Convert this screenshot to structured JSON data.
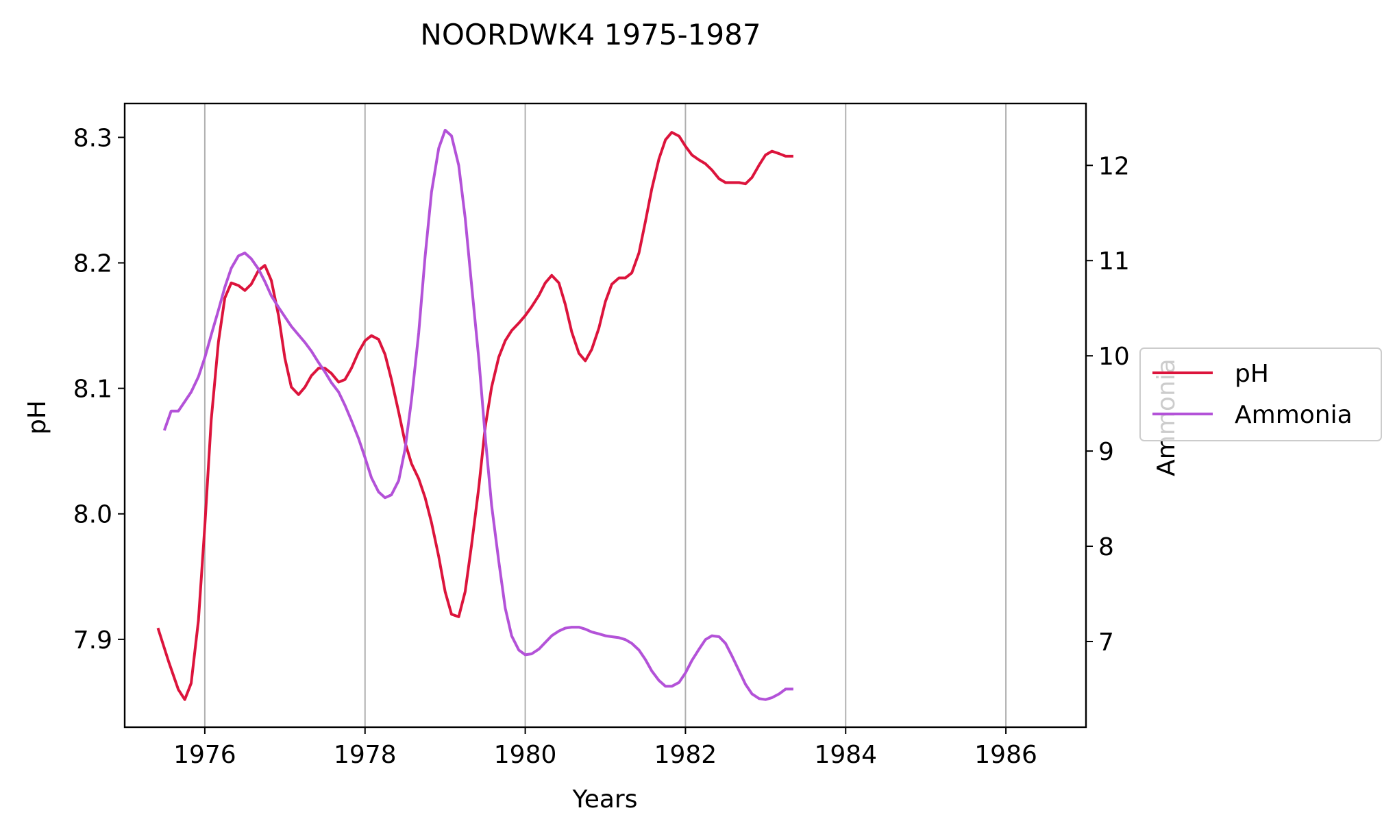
{
  "chart_data": {
    "type": "line",
    "title": "NOORDWK4 1975-1987",
    "xlabel": "Years",
    "ylabel_left": "pH",
    "ylabel_right": "Ammonia",
    "xlim": [
      1975.0,
      1987.0
    ],
    "ylim_left": [
      7.83,
      8.327
    ],
    "ylim_right": [
      6.1,
      12.65
    ],
    "x_ticks": [
      1976,
      1978,
      1980,
      1982,
      1984,
      1986
    ],
    "y_ticks_left": [
      7.9,
      8.0,
      8.1,
      8.2,
      8.3
    ],
    "y_ticks_right": [
      7,
      8,
      9,
      10,
      11,
      12
    ],
    "grid": "vertical lines at x ticks",
    "legend": {
      "placement": "right, outside plot",
      "entries": [
        "pH",
        "Ammonia"
      ]
    },
    "series": [
      {
        "name": "pH",
        "axis": "left",
        "color": "#dc143c",
        "x": [
          1975.42,
          1975.55,
          1975.67,
          1975.75,
          1975.83,
          1975.92,
          1976.0,
          1976.08,
          1976.17,
          1976.25,
          1976.33,
          1976.42,
          1976.5,
          1976.58,
          1976.67,
          1976.75,
          1976.83,
          1976.92,
          1977.0,
          1977.08,
          1977.17,
          1977.25,
          1977.33,
          1977.42,
          1977.5,
          1977.58,
          1977.67,
          1977.75,
          1977.83,
          1977.92,
          1978.0,
          1978.08,
          1978.17,
          1978.25,
          1978.33,
          1978.42,
          1978.5,
          1978.58,
          1978.67,
          1978.75,
          1978.83,
          1978.92,
          1979.0,
          1979.08,
          1979.17,
          1979.25,
          1979.33,
          1979.42,
          1979.5,
          1979.58,
          1979.67,
          1979.75,
          1979.83,
          1979.92,
          1980.0,
          1980.08,
          1980.17,
          1980.25,
          1980.33,
          1980.42,
          1980.5,
          1980.58,
          1980.67,
          1980.75,
          1980.83,
          1980.92,
          1981.0,
          1981.08,
          1981.17,
          1981.25,
          1981.33,
          1981.42,
          1981.5,
          1981.58,
          1981.67,
          1981.75,
          1981.83,
          1981.92,
          1982.0,
          1982.08,
          1982.17,
          1982.25,
          1982.33,
          1982.42,
          1982.5,
          1982.58,
          1982.67,
          1982.75,
          1982.83,
          1982.92,
          1983.0,
          1983.08,
          1983.17,
          1983.25,
          1983.33
        ],
        "values": [
          7.908,
          7.882,
          7.86,
          7.852,
          7.865,
          7.915,
          7.99,
          8.075,
          8.137,
          8.172,
          8.184,
          8.182,
          8.178,
          8.183,
          8.194,
          8.198,
          8.186,
          8.158,
          8.124,
          8.101,
          8.095,
          8.101,
          8.11,
          8.116,
          8.116,
          8.112,
          8.105,
          8.107,
          8.116,
          8.129,
          8.138,
          8.142,
          8.139,
          8.127,
          8.107,
          8.081,
          8.057,
          8.04,
          8.028,
          8.013,
          7.993,
          7.966,
          7.938,
          7.92,
          7.918,
          7.938,
          7.975,
          8.021,
          8.069,
          8.101,
          8.125,
          8.138,
          8.146,
          8.152,
          8.158,
          8.165,
          8.174,
          8.184,
          8.19,
          8.184,
          8.167,
          8.145,
          8.128,
          8.122,
          8.131,
          8.148,
          8.169,
          8.183,
          8.188,
          8.188,
          8.192,
          8.208,
          8.233,
          8.259,
          8.283,
          8.298,
          8.304,
          8.301,
          8.293,
          8.286,
          8.282,
          8.279,
          8.274,
          8.267,
          8.264,
          8.264,
          8.264,
          8.263,
          8.268,
          8.278,
          8.286,
          8.289,
          8.287,
          8.285,
          8.285
        ]
      },
      {
        "name": "Ammonia",
        "axis": "right",
        "color": "#b352d8",
        "x": [
          1975.5,
          1975.58,
          1975.67,
          1975.75,
          1975.83,
          1975.92,
          1976.0,
          1976.08,
          1976.17,
          1976.25,
          1976.33,
          1976.42,
          1976.5,
          1976.58,
          1976.67,
          1976.75,
          1976.83,
          1976.92,
          1977.0,
          1977.08,
          1977.17,
          1977.25,
          1977.33,
          1977.42,
          1977.5,
          1977.58,
          1977.67,
          1977.75,
          1977.83,
          1977.92,
          1978.0,
          1978.08,
          1978.17,
          1978.25,
          1978.33,
          1978.42,
          1978.5,
          1978.58,
          1978.67,
          1978.75,
          1978.83,
          1978.92,
          1979.0,
          1979.08,
          1979.17,
          1979.25,
          1979.33,
          1979.42,
          1979.5,
          1979.58,
          1979.67,
          1979.75,
          1979.83,
          1979.92,
          1980.0,
          1980.08,
          1980.17,
          1980.25,
          1980.33,
          1980.42,
          1980.5,
          1980.58,
          1980.67,
          1980.75,
          1980.83,
          1980.92,
          1981.0,
          1981.08,
          1981.17,
          1981.25,
          1981.33,
          1981.42,
          1981.5,
          1981.58,
          1981.67,
          1981.75,
          1981.83,
          1981.92,
          1982.0,
          1982.08,
          1982.17,
          1982.25,
          1982.33,
          1982.42,
          1982.5,
          1982.58,
          1982.67,
          1982.75,
          1982.83,
          1982.92,
          1983.0,
          1983.08,
          1983.17,
          1983.25,
          1983.33
        ],
        "values": [
          9.23,
          9.42,
          9.42,
          9.52,
          9.62,
          9.78,
          9.98,
          10.22,
          10.48,
          10.72,
          10.92,
          11.05,
          11.08,
          11.02,
          10.91,
          10.78,
          10.63,
          10.51,
          10.41,
          10.31,
          10.22,
          10.14,
          10.05,
          9.93,
          9.83,
          9.72,
          9.62,
          9.48,
          9.32,
          9.13,
          8.93,
          8.72,
          8.57,
          8.51,
          8.54,
          8.69,
          9.02,
          9.54,
          10.24,
          11.04,
          11.72,
          12.18,
          12.37,
          12.31,
          12.0,
          11.45,
          10.75,
          9.97,
          9.16,
          8.43,
          7.84,
          7.35,
          7.06,
          6.91,
          6.86,
          6.87,
          6.92,
          6.99,
          7.06,
          7.11,
          7.14,
          7.15,
          7.15,
          7.13,
          7.1,
          7.08,
          7.06,
          7.05,
          7.04,
          7.02,
          6.98,
          6.91,
          6.81,
          6.69,
          6.59,
          6.53,
          6.53,
          6.57,
          6.67,
          6.8,
          6.92,
          7.02,
          7.06,
          7.05,
          6.98,
          6.85,
          6.69,
          6.55,
          6.45,
          6.4,
          6.39,
          6.41,
          6.45,
          6.5,
          6.5
        ]
      }
    ]
  }
}
